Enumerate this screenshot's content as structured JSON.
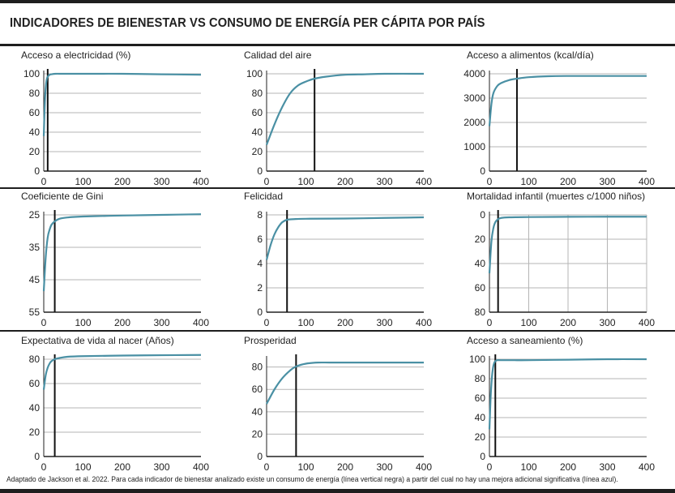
{
  "title": "INDICADORES DE BIENESTAR VS CONSUMO DE ENERGÍA PER CÁPITA POR PAÍS",
  "footnote": "Adaptado de Jackson et al. 2022. Para cada indicador de bienestar analizado existe un consumo de energía (línea vertical negra) a partir del cual no hay una mejora adicional significativa (línea azul).",
  "colors": {
    "curve": "#4a90a4",
    "threshold": "#111111",
    "grid": "#b5b5b5",
    "axis": "#222222"
  },
  "chart_data": [
    {
      "type": "line",
      "title": "Acceso a electricidad (%)",
      "x_ticks": [
        0,
        100,
        200,
        300,
        400
      ],
      "y_ticks": [
        0,
        20,
        40,
        60,
        80,
        100
      ],
      "xlim": [
        0,
        400
      ],
      "ylim": [
        0,
        100
      ],
      "y_inverted": false,
      "grid": "horizontal",
      "threshold_x": 10,
      "series": [
        {
          "x": [
            0,
            2,
            4,
            6,
            8,
            10,
            15,
            20,
            30,
            50,
            100,
            200,
            300,
            400
          ],
          "y": [
            36,
            62,
            80,
            90,
            95,
            97,
            99,
            99.5,
            100,
            100,
            100,
            100,
            99.5,
            99
          ]
        }
      ]
    },
    {
      "type": "line",
      "title": "Calidad del aire",
      "x_ticks": [
        0,
        100,
        200,
        300,
        400
      ],
      "y_ticks": [
        0,
        20,
        40,
        60,
        80,
        100
      ],
      "xlim": [
        0,
        400
      ],
      "ylim": [
        0,
        100
      ],
      "y_inverted": false,
      "grid": "horizontal",
      "threshold_x": 122,
      "series": [
        {
          "x": [
            0,
            20,
            40,
            60,
            80,
            100,
            122,
            150,
            200,
            250,
            300,
            400
          ],
          "y": [
            27,
            48,
            66,
            80,
            88,
            92,
            95,
            97,
            99,
            99.5,
            100,
            100
          ]
        }
      ]
    },
    {
      "type": "line",
      "title": "Acceso a alimentos (kcal/día)",
      "x_ticks": [
        0,
        100,
        200,
        300,
        400
      ],
      "y_ticks": [
        0,
        1000,
        2000,
        3000,
        4000
      ],
      "xlim": [
        0,
        400
      ],
      "ylim": [
        0,
        4000
      ],
      "y_inverted": false,
      "grid": "horizontal",
      "threshold_x": 70,
      "series": [
        {
          "x": [
            0,
            5,
            10,
            20,
            30,
            50,
            70,
            100,
            150,
            200,
            300,
            400
          ],
          "y": [
            1850,
            2750,
            3200,
            3500,
            3620,
            3740,
            3800,
            3860,
            3900,
            3910,
            3910,
            3910
          ]
        }
      ]
    },
    {
      "type": "line",
      "title": "Coeficiente de Gini",
      "x_ticks": [
        0,
        100,
        200,
        300,
        400
      ],
      "y_ticks": [
        25,
        35,
        45,
        55
      ],
      "xlim": [
        0,
        400
      ],
      "ylim": [
        25,
        55
      ],
      "y_inverted": true,
      "grid": "horizontal",
      "threshold_x": 28,
      "series": [
        {
          "x": [
            0,
            5,
            10,
            15,
            20,
            28,
            40,
            60,
            100,
            200,
            300,
            400
          ],
          "y": [
            48.5,
            38,
            32,
            29.5,
            28,
            27,
            26.2,
            25.8,
            25.5,
            25.2,
            25,
            24.8
          ]
        }
      ]
    },
    {
      "type": "line",
      "title": "Felicidad",
      "x_ticks": [
        0,
        100,
        200,
        300,
        400
      ],
      "y_ticks": [
        0,
        2,
        4,
        6,
        8
      ],
      "xlim": [
        0,
        400
      ],
      "ylim": [
        0,
        8
      ],
      "y_inverted": false,
      "grid": "horizontal",
      "threshold_x": 52,
      "series": [
        {
          "x": [
            0,
            10,
            20,
            30,
            40,
            52,
            70,
            100,
            200,
            300,
            400
          ],
          "y": [
            4.3,
            5.5,
            6.4,
            7.0,
            7.4,
            7.6,
            7.65,
            7.68,
            7.7,
            7.75,
            7.8
          ]
        }
      ]
    },
    {
      "type": "line",
      "title": "Mortalidad infantil (muertes c/1000 niños)",
      "x_ticks": [
        0,
        100,
        200,
        300,
        400
      ],
      "y_ticks": [
        0,
        20,
        40,
        60,
        80
      ],
      "xlim": [
        0,
        400
      ],
      "ylim": [
        0,
        80
      ],
      "y_inverted": true,
      "grid": "both",
      "threshold_x": 22,
      "series": [
        {
          "x": [
            0,
            5,
            10,
            15,
            22,
            30,
            50,
            100,
            200,
            300,
            400
          ],
          "y": [
            48,
            22,
            11,
            6,
            3.5,
            2.5,
            2,
            1.8,
            1.6,
            1.5,
            1.5
          ]
        }
      ]
    },
    {
      "type": "line",
      "title": "Expectativa de vida al nacer (Años)",
      "x_ticks": [
        0,
        100,
        200,
        300,
        400
      ],
      "y_ticks": [
        0,
        20,
        40,
        60,
        80
      ],
      "xlim": [
        0,
        400
      ],
      "ylim": [
        0,
        80
      ],
      "y_inverted": false,
      "grid": "horizontal",
      "threshold_x": 28,
      "series": [
        {
          "x": [
            0,
            5,
            10,
            15,
            20,
            28,
            40,
            60,
            100,
            200,
            300,
            400
          ],
          "y": [
            55,
            67,
            73,
            76.5,
            78.5,
            80,
            81,
            82,
            82.5,
            83,
            83.3,
            83.5
          ]
        }
      ]
    },
    {
      "type": "line",
      "title": "Prosperidad",
      "x_ticks": [
        0,
        100,
        200,
        300,
        400
      ],
      "y_ticks": [
        0,
        20,
        40,
        60,
        80
      ],
      "xlim": [
        0,
        400
      ],
      "ylim": [
        0,
        87
      ],
      "y_inverted": false,
      "grid": "horizontal",
      "threshold_x": 75,
      "series": [
        {
          "x": [
            0,
            20,
            40,
            60,
            75,
            100,
            130,
            160,
            200,
            300,
            400
          ],
          "y": [
            47,
            60,
            70,
            77,
            80.5,
            83,
            84,
            84,
            84,
            84,
            84
          ]
        }
      ]
    },
    {
      "type": "line",
      "title": "Acceso a saneamiento (%)",
      "x_ticks": [
        0,
        100,
        200,
        300,
        400
      ],
      "y_ticks": [
        0,
        20,
        40,
        60,
        80,
        100
      ],
      "xlim": [
        0,
        400
      ],
      "ylim": [
        0,
        100
      ],
      "y_inverted": false,
      "grid": "horizontal",
      "threshold_x": 15,
      "series": [
        {
          "x": [
            0,
            3,
            6,
            9,
            12,
            15,
            20,
            30,
            60,
            100,
            200,
            300,
            400
          ],
          "y": [
            28,
            60,
            80,
            91,
            96,
            98,
            99,
            99,
            99,
            99,
            99.5,
            100,
            100
          ]
        }
      ]
    }
  ]
}
